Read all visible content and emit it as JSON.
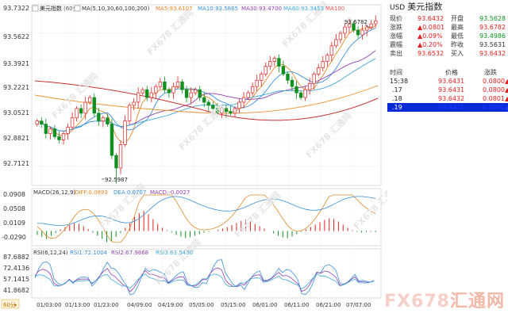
{
  "price_legend": {
    "title": "美元指数",
    "period": "(60分)",
    "ma_label": "MA(5,10,30,60,100,200)",
    "ma5": "MA5:93.6107",
    "ma10": "MA10:93.5865",
    "ma30": "MA30:93.4700",
    "ma60": "MA60:93.3453",
    "ma100": "MA100"
  },
  "price_axis": [
    "93.7322",
    "93.5622",
    "93.3921",
    "93.2221",
    "93.0521",
    "92.8821",
    "92.7121"
  ],
  "annotations": {
    "high": "93.6782",
    "low": "92.5987"
  },
  "macd_legend": {
    "label": "MACD(26,12,9)",
    "diff": "DIFF:0.0893",
    "dea": "DEA:0.0707",
    "macd": "MACD:-0.0027"
  },
  "macd_axis": [
    "0.0908",
    "0.0508",
    "0.0109",
    "-0.0290"
  ],
  "rsi_legend": {
    "label": "RSI(6,12,24)",
    "rsi1": "RSI1:72.1004",
    "rsi2": "RSI2:67.9868",
    "rsi3": "RSI3:63.5430"
  },
  "rsi_axis": [
    "87.6882",
    "72.4136",
    "57.1415",
    "41.8682"
  ],
  "period_button": "60分",
  "time_axis": [
    "01/03:00",
    "01/13:00",
    "01/23:00",
    "04/09:00",
    "04/19:00",
    "05/05:00",
    "05/15:00",
    "06/01:00",
    "06/11:00",
    "06/21:00",
    "07/07:00"
  ],
  "watermark": {
    "brand": "FX678",
    "cn": "汇通网"
  },
  "colors": {
    "up": "#e02020",
    "down": "#109020",
    "ma5": "#e08a2a",
    "ma10": "#3a8fd8",
    "ma30": "#9040b0",
    "ma60": "#40a8d8",
    "ma100": "#e05050",
    "ma200": "#c83030",
    "select": "#0a2ad8"
  },
  "quote": {
    "symbol": "USD",
    "name": "美元指数",
    "rows": [
      {
        "l1": "现价",
        "v1": "93.6432",
        "c1": "up",
        "l2": "开盘",
        "v2": "93.5628",
        "c2": "dn"
      },
      {
        "l1": "涨跌",
        "v1": "▲0.0801",
        "c1": "up",
        "l2": "最高",
        "v2": "93.6782",
        "c2": "up"
      },
      {
        "l1": "涨幅",
        "v1": "▲0.09%",
        "c1": "up",
        "l2": "最低",
        "v2": "93.4986",
        "c2": "dn"
      },
      {
        "l1": "震幅",
        "v1": "▲0.20%",
        "c1": "up",
        "l2": "昨收",
        "v2": "93.5631",
        "c2": ""
      },
      {
        "l1": "卖出",
        "v1": "93.6532",
        "c1": "up",
        "l2": "买入",
        "v2": "93.6432",
        "c2": "up"
      }
    ]
  },
  "ticks": {
    "headers": {
      "time": "时间",
      "price": "价格",
      "change": "涨跌"
    },
    "rows": [
      {
        "time": "15:38",
        "price": "93.6431",
        "change": "0.0800▲"
      },
      {
        "time": ".17",
        "price": "93.6431",
        "change": "0.0800▲"
      },
      {
        "time": ".18",
        "price": "93.6432",
        "change": "0.0801▲"
      },
      {
        "time": ".19",
        "price": "93.6431",
        "change": "0.0800▲"
      }
    ]
  },
  "chart_data": [
    {
      "type": "candlestick",
      "title": "美元指数",
      "interval": "60分",
      "ylim": [
        92.5987,
        93.7322
      ],
      "y_ticks": [
        93.7322,
        93.5622,
        93.3921,
        93.2221,
        93.0521,
        92.8821,
        92.7121
      ],
      "x_ticks": [
        "01/03:00",
        "01/13:00",
        "01/23:00",
        "04/09:00",
        "04/19:00",
        "05/05:00",
        "05/15:00",
        "06/01:00",
        "06/11:00",
        "06/21:00",
        "07/07:00"
      ],
      "close": [
        93.0,
        92.98,
        92.92,
        92.95,
        92.9,
        92.88,
        92.92,
        92.96,
        93.02,
        93.08,
        93.05,
        93.12,
        93.15,
        93.05,
        93.0,
        93.02,
        92.98,
        92.78,
        92.7,
        92.85,
        93.0,
        93.1,
        93.12,
        93.18,
        93.2,
        93.15,
        93.18,
        93.22,
        93.25,
        93.2,
        93.18,
        93.22,
        93.25,
        93.2,
        93.15,
        93.18,
        93.2,
        93.15,
        93.12,
        93.1,
        93.08,
        93.05,
        93.08,
        93.06,
        93.05,
        93.08,
        93.12,
        93.15,
        93.18,
        93.22,
        93.26,
        93.3,
        93.35,
        93.38,
        93.4,
        93.35,
        93.3,
        93.26,
        93.22,
        93.18,
        93.15,
        93.2,
        93.24,
        93.3,
        93.34,
        93.38,
        93.42,
        93.48,
        93.52,
        93.56,
        93.6,
        93.62,
        93.58,
        93.55,
        93.58,
        93.6,
        93.62,
        93.64
      ],
      "ma5": [
        93.0,
        92.99,
        92.97,
        92.96,
        92.93,
        92.91,
        92.91,
        92.92,
        92.94,
        92.97,
        93.0,
        93.04,
        93.08,
        93.09,
        93.07,
        93.06,
        93.04,
        92.97,
        92.9,
        92.87,
        92.86,
        92.89,
        92.95,
        93.05,
        93.12,
        93.15,
        93.16,
        93.18,
        93.2,
        93.2,
        93.2,
        93.21,
        93.22,
        93.21,
        93.2,
        93.2,
        93.2,
        93.18,
        93.16,
        93.15,
        93.13,
        93.1,
        93.08,
        93.07,
        93.06,
        93.06,
        93.08,
        93.09,
        93.12,
        93.15,
        93.19,
        93.22,
        93.26,
        93.3,
        93.34,
        93.36,
        93.36,
        93.34,
        93.31,
        93.26,
        93.22,
        93.2,
        93.2,
        93.21,
        93.25,
        93.29,
        93.34,
        93.38,
        93.43,
        93.47,
        93.52,
        93.56,
        93.58,
        93.58,
        93.59,
        93.59,
        93.59,
        93.61
      ]
    },
    {
      "type": "bar",
      "title": "MACD(26,12,9)",
      "ylim": [
        -0.029,
        0.0908
      ],
      "y_ticks": [
        0.0908,
        0.0508,
        0.0109,
        -0.029
      ],
      "series": [
        {
          "name": "DIFF",
          "last": 0.0893
        },
        {
          "name": "DEA",
          "last": 0.0707
        },
        {
          "name": "MACD",
          "last": -0.0027
        }
      ],
      "macd_bars": [
        -0.01,
        -0.015,
        -0.02,
        -0.012,
        -0.005,
        0.004,
        0.01,
        0.015,
        0.02,
        0.018,
        0.012,
        0.005,
        -0.004,
        -0.012,
        -0.02,
        -0.028,
        -0.025,
        -0.015,
        -0.005,
        0.008,
        0.02,
        0.035,
        0.045,
        0.05,
        0.042,
        0.03,
        0.018,
        0.008,
        0.002,
        -0.004,
        -0.01,
        -0.014,
        -0.018,
        -0.016,
        -0.012,
        -0.008,
        -0.004,
        -0.002,
        0.0,
        0.003,
        0.006,
        0.01,
        0.015,
        0.02,
        0.025,
        0.028,
        0.024,
        0.018,
        0.012,
        0.006,
        0.0,
        -0.006,
        -0.012,
        -0.016,
        -0.018,
        -0.014,
        -0.008,
        -0.002,
        0.004,
        0.01,
        0.016,
        0.022,
        0.028,
        0.032,
        0.03,
        0.024,
        0.016,
        0.008,
        0.002,
        -0.002,
        -0.004,
        -0.003,
        -0.002,
        -0.003
      ]
    },
    {
      "type": "line",
      "title": "RSI(6,12,24)",
      "ylim": [
        41.8682,
        87.6882
      ],
      "y_ticks": [
        87.6882,
        72.4136,
        57.1415,
        41.8682
      ],
      "series": [
        {
          "name": "RSI1",
          "last": 72.1004
        },
        {
          "name": "RSI2",
          "last": 67.9868
        },
        {
          "name": "RSI3",
          "last": 63.543
        }
      ]
    }
  ]
}
